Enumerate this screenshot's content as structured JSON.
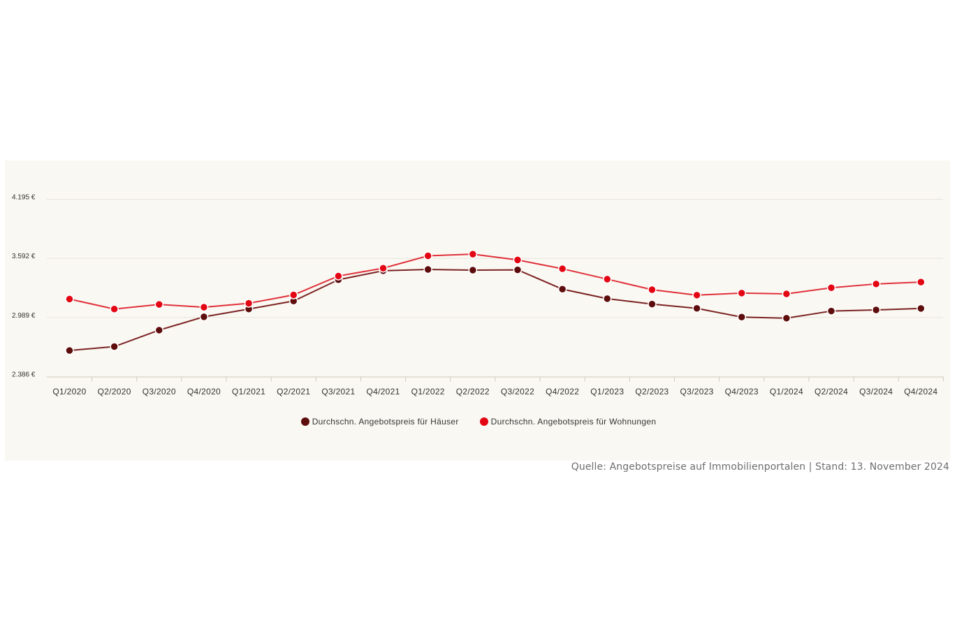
{
  "chart_data": {
    "type": "line",
    "categories": [
      "Q1/2020",
      "Q2/2020",
      "Q3/2020",
      "Q4/2020",
      "Q1/2021",
      "Q2/2021",
      "Q3/2021",
      "Q4/2021",
      "Q1/2022",
      "Q2/2022",
      "Q3/2022",
      "Q4/2022",
      "Q1/2023",
      "Q2/2023",
      "Q3/2023",
      "Q4/2023",
      "Q1/2024",
      "Q2/2024",
      "Q3/2024",
      "Q4/2024"
    ],
    "y_ticks": [
      "2.386 €",
      "2.989 €",
      "3.592 €",
      "4.195 €"
    ],
    "ylim": [
      2386,
      4195
    ],
    "grid": true,
    "legend_position": "bottom",
    "series": [
      {
        "name": "Durchschn. Angebotspreis für Häuser",
        "color": "#5e0d0d",
        "line_color": "#7a2222",
        "values": [
          2652,
          2692,
          2860,
          2996,
          3075,
          3157,
          3374,
          3466,
          3479,
          3472,
          3475,
          3278,
          3181,
          3126,
          3082,
          2993,
          2982,
          3055,
          3066,
          3081
        ]
      },
      {
        "name": "Durchschn. Angebotspreis für Wohnungen",
        "color": "#e30613",
        "line_color": "#e0303a",
        "values": [
          3177,
          3075,
          3122,
          3094,
          3134,
          3219,
          3412,
          3492,
          3618,
          3635,
          3576,
          3486,
          3380,
          3273,
          3217,
          3238,
          3230,
          3292,
          3331,
          3350
        ]
      }
    ]
  },
  "source": "Quelle: Angebotspreise auf Immobilienportalen | Stand: 13. November 2024"
}
